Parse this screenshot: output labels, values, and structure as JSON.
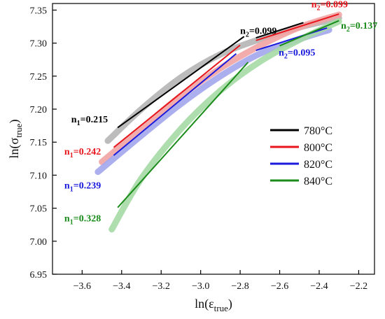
{
  "chart_data": {
    "type": "line",
    "xlabel": "ln(ε_true)",
    "ylabel": "ln(σ_true)",
    "xlim": [
      -3.75,
      -2.12
    ],
    "ylim": [
      6.95,
      7.36
    ],
    "xticks": [
      -3.6,
      -3.4,
      -3.2,
      -3.0,
      -2.8,
      -2.6,
      -2.4,
      -2.2
    ],
    "yticks": [
      6.95,
      7.0,
      7.05,
      7.1,
      7.15,
      7.2,
      7.25,
      7.3,
      7.35
    ],
    "xtick_labels": [
      "−3.6",
      "−3.4",
      "−3.2",
      "−3.0",
      "−2.8",
      "−2.6",
      "−2.4",
      "−2.2"
    ],
    "ytick_labels": [
      "6.95",
      "7.00",
      "7.05",
      "7.10",
      "7.15",
      "7.20",
      "7.25",
      "7.30",
      "7.35"
    ],
    "legend_position": "right",
    "grid": false,
    "series": [
      {
        "name": "780°C",
        "color": "#000000",
        "band_color": "#b5b5b5",
        "curve": [
          [
            -3.47,
            7.152
          ],
          [
            -3.3,
            7.2
          ],
          [
            -3.1,
            7.248
          ],
          [
            -2.9,
            7.283
          ],
          [
            -2.7,
            7.306
          ],
          [
            -2.5,
            7.324
          ],
          [
            -2.3,
            7.338
          ]
        ],
        "fit_low": {
          "x": [
            -3.42,
            -2.78
          ],
          "y": [
            7.172,
            7.31
          ]
        },
        "fit_high": {
          "x": [
            -2.72,
            -2.48
          ],
          "y": [
            7.308,
            7.331
          ]
        },
        "n1_value": "0.215",
        "n2_value": "0.099"
      },
      {
        "name": "800°C",
        "color": "#e8161c",
        "band_color": "#f2a3a3",
        "curve": [
          [
            -3.5,
            7.12
          ],
          [
            -3.3,
            7.17
          ],
          [
            -3.1,
            7.22
          ],
          [
            -2.9,
            7.262
          ],
          [
            -2.7,
            7.296
          ],
          [
            -2.5,
            7.324
          ],
          [
            -2.3,
            7.343
          ]
        ],
        "fit_low": {
          "x": [
            -3.44,
            -2.8
          ],
          "y": [
            7.142,
            7.297
          ]
        },
        "fit_high": {
          "x": [
            -2.72,
            -2.3
          ],
          "y": [
            7.304,
            7.344
          ]
        },
        "n1_value": "0.242",
        "n2_value": "0.099"
      },
      {
        "name": "820°C",
        "color": "#1a1adc",
        "band_color": "#a3a6ec",
        "curve": [
          [
            -3.52,
            7.105
          ],
          [
            -3.3,
            7.16
          ],
          [
            -3.1,
            7.208
          ],
          [
            -2.9,
            7.25
          ],
          [
            -2.7,
            7.284
          ],
          [
            -2.5,
            7.306
          ],
          [
            -2.35,
            7.32
          ]
        ],
        "fit_low": {
          "x": [
            -3.44,
            -2.82
          ],
          "y": [
            7.13,
            7.284
          ]
        },
        "fit_high": {
          "x": [
            -2.72,
            -2.36
          ],
          "y": [
            7.289,
            7.323
          ]
        },
        "n1_value": "0.239",
        "n2_value": "0.095"
      },
      {
        "name": "840°C",
        "color": "#1a8c1a",
        "band_color": "#a5d9a5",
        "curve": [
          [
            -3.45,
            7.018
          ],
          [
            -3.3,
            7.095
          ],
          [
            -3.1,
            7.17
          ],
          [
            -2.9,
            7.228
          ],
          [
            -2.7,
            7.272
          ],
          [
            -2.5,
            7.305
          ],
          [
            -2.3,
            7.333
          ]
        ],
        "fit_low": {
          "x": [
            -3.42,
            -2.76
          ],
          "y": [
            7.051,
            7.271
          ]
        },
        "fit_high": {
          "x": [
            -2.6,
            -2.3
          ],
          "y": [
            7.296,
            7.334
          ]
        },
        "n1_value": "0.328",
        "n2_value": "0.137"
      }
    ],
    "annotations": [
      {
        "series": 0,
        "kind": "n1",
        "text": "0.215",
        "x": -3.655,
        "y": 7.18
      },
      {
        "series": 1,
        "kind": "n1",
        "text": "0.242",
        "x": -3.69,
        "y": 7.131
      },
      {
        "series": 2,
        "kind": "n1",
        "text": "0.239",
        "x": -3.69,
        "y": 7.08
      },
      {
        "series": 3,
        "kind": "n1",
        "text": "0.328",
        "x": -3.69,
        "y": 7.03
      },
      {
        "series": 0,
        "kind": "n2",
        "text": "0.099",
        "x": -2.8,
        "y": 7.314
      },
      {
        "series": 1,
        "kind": "n2",
        "text": "0.099",
        "x": -2.44,
        "y": 7.354
      },
      {
        "series": 2,
        "kind": "n2",
        "text": "0.095",
        "x": -2.605,
        "y": 7.281
      },
      {
        "series": 3,
        "kind": "n2",
        "text": "0.137",
        "x": -2.29,
        "y": 7.322
      }
    ]
  }
}
